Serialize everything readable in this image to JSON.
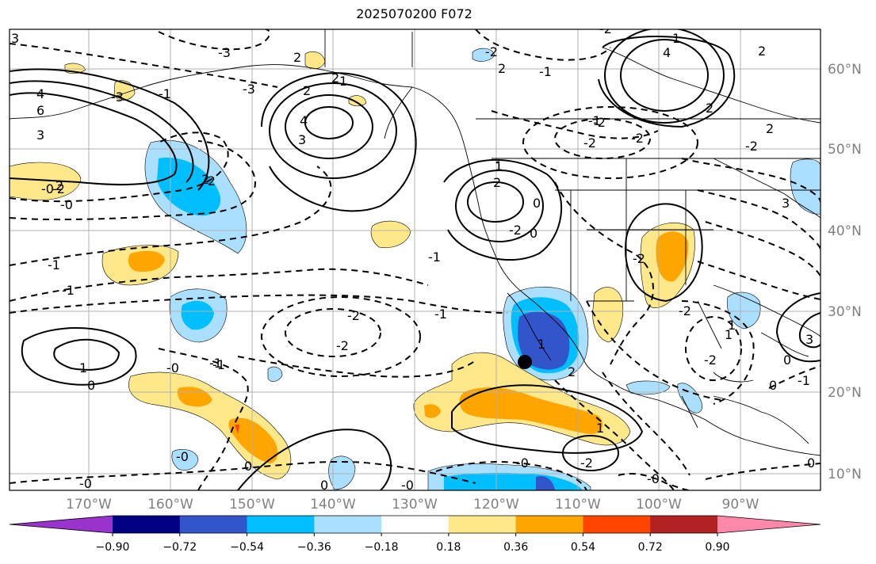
{
  "title": "2025070200 F072",
  "lon_labels": [
    "170°W",
    "160°W",
    "150°W",
    "140°W",
    "130°W",
    "120°W",
    "110°W",
    "100°W",
    "90°W"
  ],
  "lat_labels": [
    "60°N",
    "50°N",
    "40°N",
    "30°N",
    "20°N",
    "10°N"
  ],
  "colorbar": {
    "ticks": [
      "−0.90",
      "−0.72",
      "−0.54",
      "−0.36",
      "−0.18",
      "0.18",
      "0.36",
      "0.54",
      "0.72",
      "0.90"
    ],
    "colors": [
      "#9933cc",
      "#000080",
      "#3355cc",
      "#00bfff",
      "#aadfff",
      "#ffffff",
      "#ffe88a",
      "#ffa500",
      "#ff4500",
      "#b22222",
      "#ff88aa"
    ]
  },
  "contour_labels": [
    "3",
    "-3",
    "2",
    "-1",
    "4",
    "-3",
    "6",
    "3",
    "-3",
    "-2",
    "2",
    "-1",
    "1",
    "-2",
    "2",
    "1",
    "-0",
    "-2",
    "-1",
    "2",
    "-2",
    "1",
    "0",
    "0",
    "-1",
    "1",
    "-2",
    "-2",
    "-1",
    "3",
    "2",
    "1",
    "4",
    "-2",
    "-2",
    "2",
    "-1",
    "-0",
    "-2",
    "-0",
    "-1",
    "0",
    "2",
    "0",
    "-0",
    "-0",
    "0",
    "-2",
    "1",
    "-2",
    "-2",
    "2",
    "-2",
    "2",
    "4",
    "2",
    "3",
    "1",
    "3",
    "-1",
    "0",
    "0",
    "0",
    "-1",
    "1",
    "-0",
    "-2",
    "-0",
    "-2",
    "1",
    "2",
    "-0",
    "-1"
  ],
  "marker": "station-dot"
}
